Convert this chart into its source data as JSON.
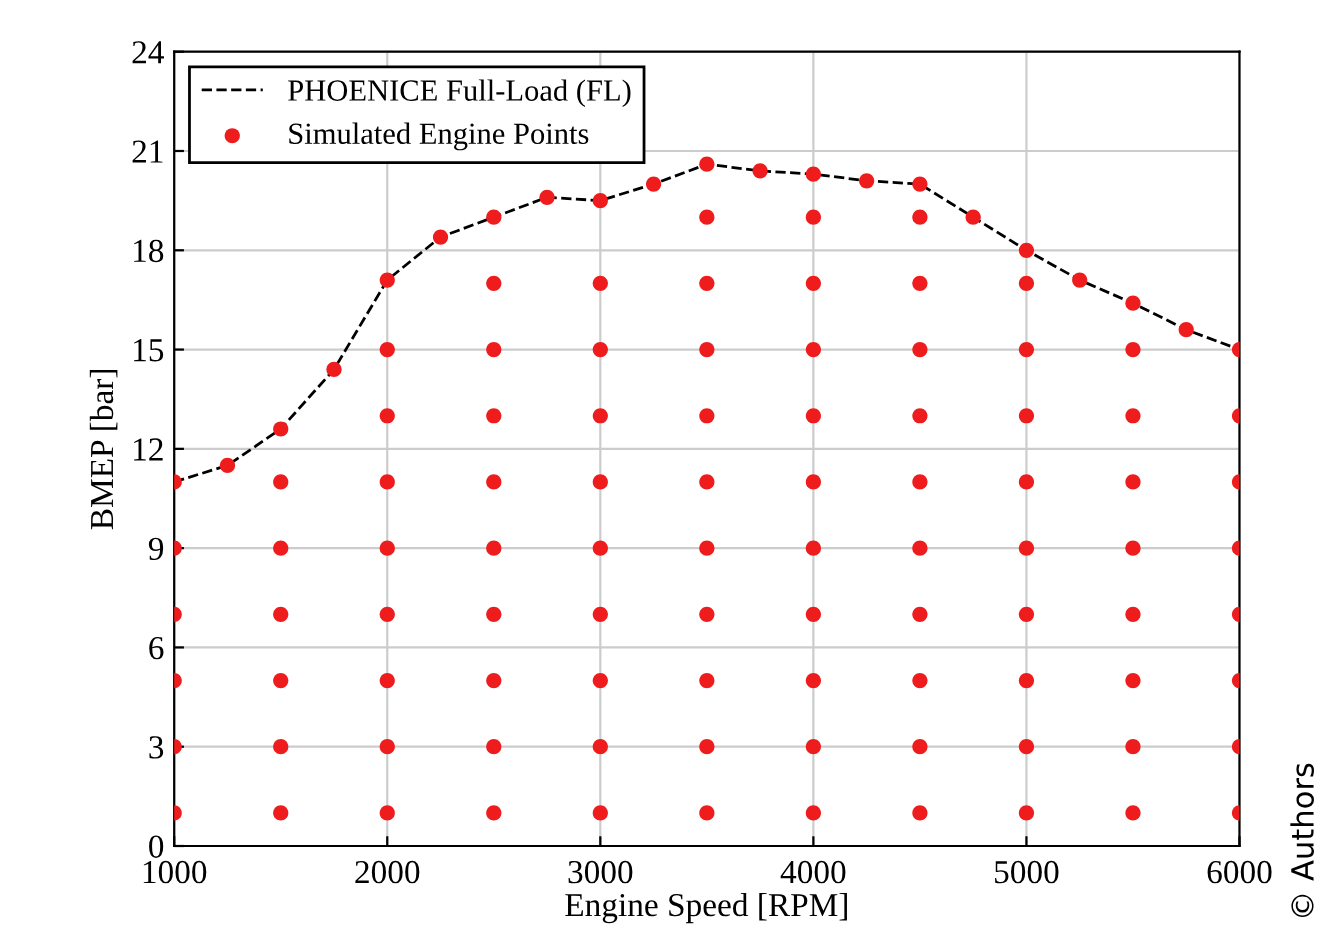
{
  "chart_data": {
    "type": "scatter",
    "xlabel": "Engine Speed [RPM]",
    "ylabel": "BMEP [bar]",
    "xlim": [
      1000,
      6000
    ],
    "xticks": [
      1000,
      2000,
      3000,
      4000,
      5000,
      6000
    ],
    "ylim": [
      0,
      24
    ],
    "yticks": [
      0,
      3,
      6,
      9,
      12,
      15,
      18,
      21,
      24
    ],
    "grid": true,
    "legend": "top left",
    "annotations": [
      "© Authors"
    ],
    "series": [
      {
        "name": "PHOENICE Full-Load (FL)",
        "type": "line",
        "color": "#000000",
        "line_style": "dashed",
        "marker": "none",
        "x": [
          1000,
          1250,
          1500,
          1750,
          2000,
          2250,
          2500,
          2750,
          3000,
          3250,
          3500,
          3750,
          4000,
          4250,
          4500,
          4750,
          5000,
          5250,
          5500,
          5750,
          6000
        ],
        "values": [
          11,
          11.5,
          12.6,
          14.4,
          17.1,
          18.4,
          19.0,
          19.6,
          19.5,
          20.0,
          20.6,
          20.4,
          20.3,
          20.1,
          20.0,
          19.0,
          18.0,
          17.1,
          16.4,
          15.6,
          15.0
        ]
      },
      {
        "name": "Simulated Engine Points",
        "color": "#ee1c1c",
        "marker": "circle",
        "x": [
          1000,
          1000,
          1000,
          1000,
          1000,
          1000,
          1250,
          1500,
          1500,
          1500,
          1500,
          1500,
          1500,
          1500,
          1750,
          2000,
          2000,
          2000,
          2000,
          2000,
          2000,
          2000,
          2000,
          2000,
          2250,
          2500,
          2500,
          2500,
          2500,
          2500,
          2500,
          2500,
          2500,
          2500,
          2500,
          2750,
          3000,
          3000,
          3000,
          3000,
          3000,
          3000,
          3000,
          3000,
          3000,
          3000,
          3250,
          3500,
          3500,
          3500,
          3500,
          3500,
          3500,
          3500,
          3500,
          3500,
          3500,
          3500,
          3750,
          4000,
          4000,
          4000,
          4000,
          4000,
          4000,
          4000,
          4000,
          4000,
          4000,
          4000,
          4250,
          4500,
          4500,
          4500,
          4500,
          4500,
          4500,
          4500,
          4500,
          4500,
          4500,
          4500,
          4750,
          5000,
          5000,
          5000,
          5000,
          5000,
          5000,
          5000,
          5000,
          5000,
          5000,
          5250,
          5500,
          5500,
          5500,
          5500,
          5500,
          5500,
          5500,
          5500,
          5500,
          5750,
          6000,
          6000,
          6000,
          6000,
          6000,
          6000,
          6000,
          6000
        ],
        "values": [
          1,
          3,
          5,
          7,
          9,
          11,
          11.5,
          1,
          3,
          5,
          7,
          9,
          11,
          12.6,
          14.4,
          1,
          3,
          5,
          7,
          9,
          11,
          13,
          15,
          17.1,
          18.4,
          1,
          3,
          5,
          7,
          9,
          11,
          13,
          15,
          17,
          19.0,
          19.6,
          1,
          3,
          5,
          7,
          9,
          11,
          13,
          15,
          17,
          19.5,
          20.0,
          1,
          3,
          5,
          7,
          9,
          11,
          13,
          15,
          17,
          19,
          20.6,
          20.4,
          1,
          3,
          5,
          7,
          9,
          11,
          13,
          15,
          17,
          19,
          20.3,
          20.1,
          1,
          3,
          5,
          7,
          9,
          11,
          13,
          15,
          17,
          19,
          20.0,
          19.0,
          1,
          3,
          5,
          7,
          9,
          11,
          13,
          15,
          17,
          18.0,
          17.1,
          1,
          3,
          5,
          7,
          9,
          11,
          13,
          15,
          16.4,
          15.6,
          1,
          3,
          5,
          7,
          9,
          11,
          13,
          15.0
        ]
      }
    ]
  }
}
